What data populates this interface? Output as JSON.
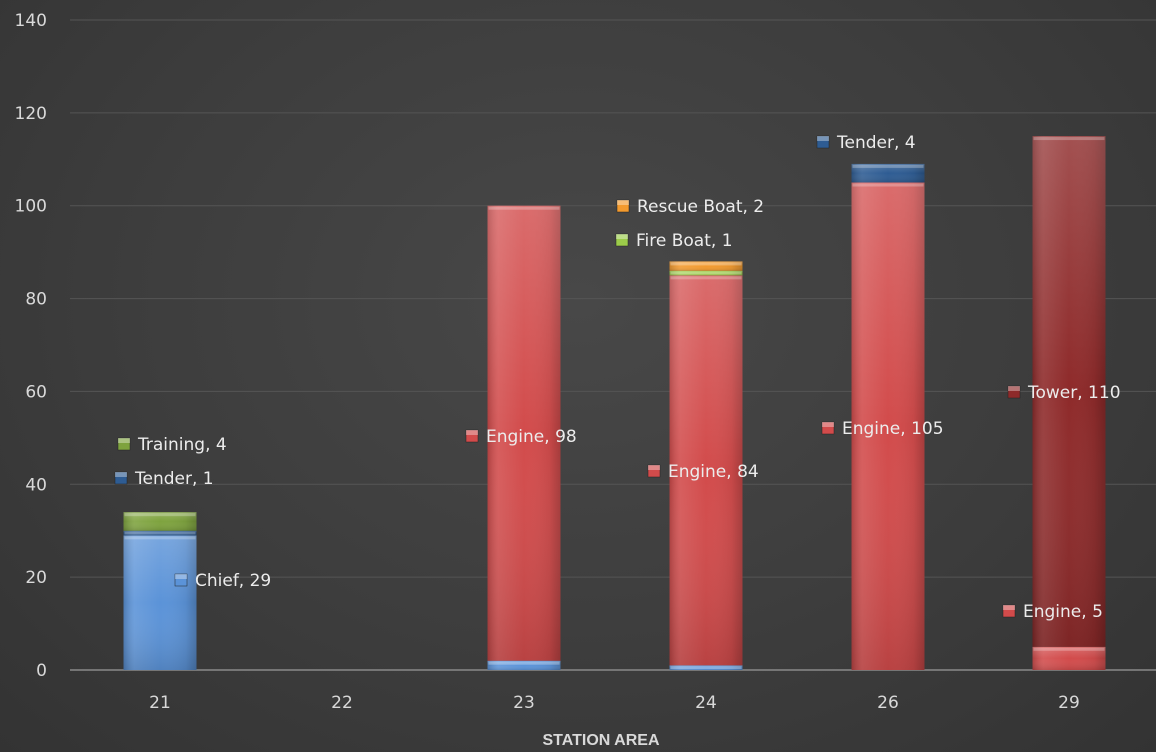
{
  "colors": {
    "Chief": "#5b93d8",
    "Tender": "#2e5c93",
    "Training": "#7ea33e",
    "Engine": "#d24b4b",
    "Fire Boat": "#9ccc4a",
    "Rescue Boat": "#f39a2e",
    "Tower": "#8e2a2a",
    "gridline": "#555555",
    "tick_text": "#d9d9d9",
    "label_text": "#ececec"
  },
  "chart_data": {
    "type": "bar",
    "stacked": true,
    "categories": [
      "21",
      "22",
      "23",
      "24",
      "26",
      "29"
    ],
    "xlabel": "STATION AREA",
    "ylabel": "",
    "ylim": [
      0,
      140
    ],
    "yticks": [
      0,
      20,
      40,
      60,
      80,
      100,
      120,
      140
    ],
    "grid": true,
    "series": [
      {
        "name": "Chief",
        "values": [
          29,
          0,
          2,
          1,
          0,
          0
        ],
        "labels": [
          true,
          false,
          false,
          false,
          false,
          false
        ]
      },
      {
        "name": "Tender",
        "values": [
          1,
          0,
          0,
          0,
          0,
          0
        ],
        "labels": [
          true,
          false,
          false,
          false,
          false,
          false
        ]
      },
      {
        "name": "Training",
        "values": [
          4,
          0,
          0,
          0,
          0,
          0
        ],
        "labels": [
          true,
          false,
          false,
          false,
          false,
          false
        ]
      },
      {
        "name": "Engine",
        "values": [
          0,
          0,
          98,
          84,
          105,
          5
        ],
        "labels": [
          false,
          false,
          true,
          true,
          true,
          true
        ]
      },
      {
        "name": "Fire Boat",
        "values": [
          0,
          0,
          0,
          1,
          0,
          0
        ],
        "labels": [
          false,
          false,
          false,
          true,
          false,
          false
        ]
      },
      {
        "name": "Rescue Boat",
        "values": [
          0,
          0,
          0,
          2,
          0,
          0
        ],
        "labels": [
          false,
          false,
          false,
          true,
          false,
          false
        ]
      },
      {
        "name": "Tender",
        "values": [
          0,
          0,
          0,
          0,
          4,
          0
        ],
        "labels": [
          false,
          false,
          false,
          false,
          true,
          false
        ]
      },
      {
        "name": "Tower",
        "values": [
          0,
          0,
          0,
          0,
          0,
          110
        ],
        "labels": [
          false,
          false,
          false,
          false,
          false,
          true
        ]
      }
    ]
  }
}
